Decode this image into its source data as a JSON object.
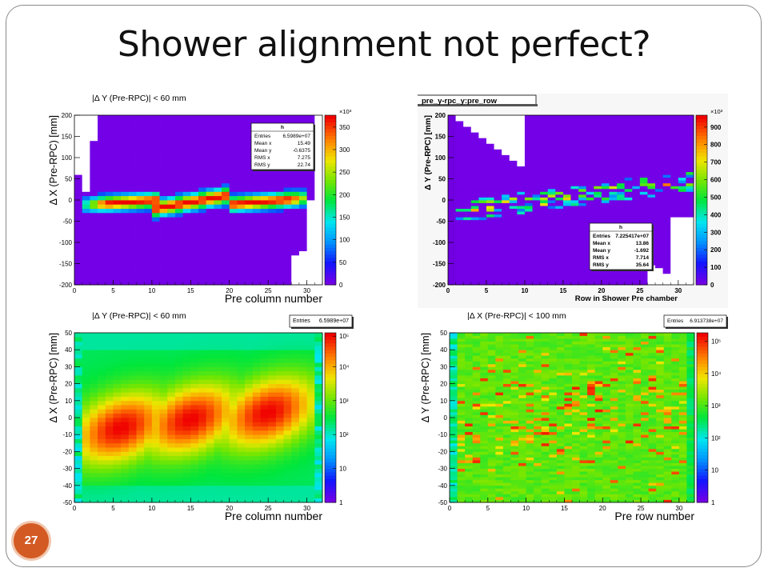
{
  "slide": {
    "title": "Shower alignment not perfect?",
    "page_number": "27"
  },
  "chart_data": [
    {
      "type": "heatmap",
      "title": "|Δ Y (Pre-RPC)| < 60 mm",
      "xlabel": "Pre column number",
      "ylabel": "Δ X (Pre-RPC) [mm]",
      "xlim": [
        0,
        32
      ],
      "ylim": [
        -200,
        200
      ],
      "xticks": [
        "0",
        "5",
        "10",
        "15",
        "20",
        "25",
        "30"
      ],
      "yticks": [
        "-200",
        "-150",
        "-100",
        "-50",
        "0",
        "50",
        "100",
        "150",
        "200"
      ],
      "zscale": "linear",
      "zmultiplier": "×10³",
      "zticks": [
        "0",
        "50",
        "100",
        "150",
        "200",
        "250",
        "300",
        "350"
      ],
      "stats": {
        "name": "h",
        "rows": [
          [
            "Entries",
            "6.5989e+07"
          ],
          [
            "Mean x",
            "15.49"
          ],
          [
            "Mean y",
            "-0.6375"
          ],
          [
            "RMS x",
            "7.275"
          ],
          [
            "RMS y",
            "22.74"
          ]
        ]
      },
      "band": {
        "segments": [
          {
            "x0": 1,
            "x1": 10.5,
            "yc0": -12,
            "yc1": 0,
            "halfwidth": 22
          },
          {
            "x0": 10.5,
            "x1": 20,
            "yc0": -20,
            "yc1": 12,
            "halfwidth": 24
          },
          {
            "x0": 20,
            "x1": 30,
            "yc0": -10,
            "yc1": 5,
            "halfwidth": 22
          }
        ]
      }
    },
    {
      "type": "heatmap",
      "title": "pre_y-rpc_y:pre_row",
      "xlabel": "Row in Shower Pre chamber",
      "ylabel": "Δ Y (Pre-RPC) [mm]",
      "xlim": [
        0,
        32
      ],
      "ylim": [
        -200,
        200
      ],
      "xticks": [
        "0",
        "5",
        "10",
        "15",
        "20",
        "25",
        "30"
      ],
      "yticks": [
        "-200",
        "-150",
        "-100",
        "-50",
        "0",
        "50",
        "100",
        "150",
        "200"
      ],
      "zscale": "linear",
      "zmultiplier": "×10³",
      "zticks": [
        "0",
        "100",
        "200",
        "300",
        "400",
        "500",
        "600",
        "700",
        "800",
        "900"
      ],
      "stats": {
        "name": "h",
        "rows": [
          [
            "Entries",
            "7.225417e+07"
          ],
          [
            "Mean x",
            "13.86"
          ],
          [
            "Mean y",
            "-1.692"
          ],
          [
            "RMS x",
            "7.714"
          ],
          [
            "RMS y",
            "35.64"
          ]
        ]
      }
    },
    {
      "type": "heatmap",
      "title": "|Δ Y (Pre-RPC)| < 60 mm",
      "xlabel": "Pre column number",
      "ylabel": "Δ X (Pre-RPC) [mm]",
      "xlim": [
        0,
        32
      ],
      "ylim": [
        -50,
        50
      ],
      "xticks": [
        "0",
        "5",
        "10",
        "15",
        "20",
        "25",
        "30"
      ],
      "yticks": [
        "-50",
        "-40",
        "-30",
        "-20",
        "-10",
        "0",
        "10",
        "20",
        "30",
        "40",
        "50"
      ],
      "zscale": "log",
      "zticks": [
        "1",
        "10",
        "10²",
        "10³",
        "10⁴",
        "10⁵"
      ],
      "stats": {
        "rows": [
          [
            "Entries",
            "6.5989e+07"
          ]
        ]
      }
    },
    {
      "type": "heatmap",
      "title": "|Δ X (Pre-RPC)| < 100 mm",
      "xlabel": "Pre row number",
      "ylabel": "Δ Y (Pre-RPC) [mm]",
      "xlim": [
        0,
        32
      ],
      "ylim": [
        -50,
        50
      ],
      "xticks": [
        "0",
        "5",
        "10",
        "15",
        "20",
        "25",
        "30"
      ],
      "yticks": [
        "-50",
        "-40",
        "-30",
        "-20",
        "-10",
        "0",
        "10",
        "20",
        "30",
        "40",
        "50"
      ],
      "zscale": "log",
      "zticks": [
        "1",
        "10",
        "10²",
        "10³",
        "10⁴",
        "10⁵"
      ],
      "stats": {
        "rows": [
          [
            "Entries",
            "6.913738e+07"
          ]
        ]
      }
    }
  ]
}
